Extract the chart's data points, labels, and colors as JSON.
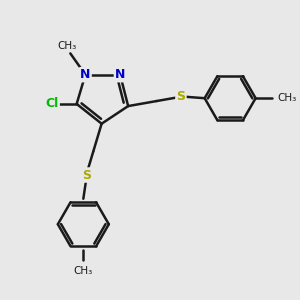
{
  "bg_color": "#e8e8e8",
  "bond_color": "#1a1a1a",
  "N_color": "#0000cc",
  "S_color": "#aaaa00",
  "Cl_color": "#00bb00",
  "lw": 1.8,
  "figsize": [
    3.0,
    3.0
  ],
  "dpi": 100,
  "xlim": [
    0,
    10
  ],
  "ylim": [
    0,
    10
  ]
}
